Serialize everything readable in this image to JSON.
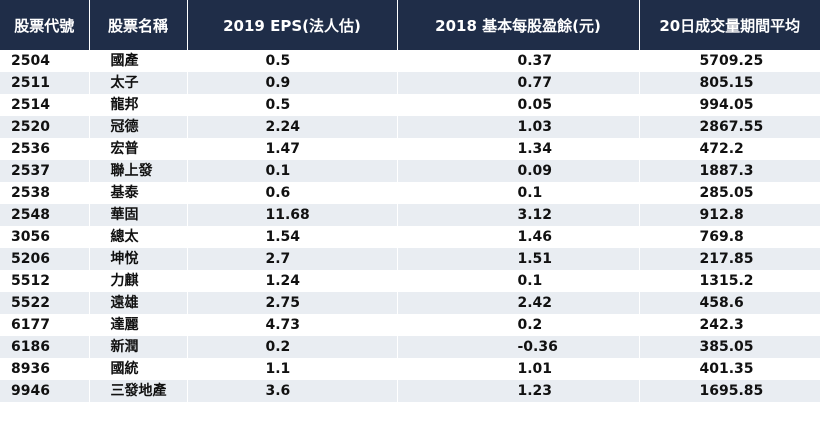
{
  "headers": [
    "股票代號",
    "股票名稱",
    "2019 EPS(法人估)",
    "2018 基本每股盈餘(元)",
    "20日成交量期間平均"
  ],
  "rows": [
    {
      "code": "2504",
      "name": "國產",
      "eps2019": "0.5",
      "eps2018": "0.37",
      "vol20": "5709.25"
    },
    {
      "code": "2511",
      "name": "太子",
      "eps2019": "0.9",
      "eps2018": "0.77",
      "vol20": "805.15"
    },
    {
      "code": "2514",
      "name": "龍邦",
      "eps2019": "0.5",
      "eps2018": "0.05",
      "vol20": "994.05"
    },
    {
      "code": "2520",
      "name": "冠德",
      "eps2019": "2.24",
      "eps2018": "1.03",
      "vol20": "2867.55"
    },
    {
      "code": "2536",
      "name": "宏普",
      "eps2019": "1.47",
      "eps2018": "1.34",
      "vol20": "472.2"
    },
    {
      "code": "2537",
      "name": "聯上發",
      "eps2019": "0.1",
      "eps2018": "0.09",
      "vol20": "1887.3"
    },
    {
      "code": "2538",
      "name": "基泰",
      "eps2019": "0.6",
      "eps2018": "0.1",
      "vol20": "285.05"
    },
    {
      "code": "2548",
      "name": "華固",
      "eps2019": "11.68",
      "eps2018": "3.12",
      "vol20": "912.8"
    },
    {
      "code": "3056",
      "name": "總太",
      "eps2019": "1.54",
      "eps2018": "1.46",
      "vol20": "769.8"
    },
    {
      "code": "5206",
      "name": "坤悅",
      "eps2019": "2.7",
      "eps2018": "1.51",
      "vol20": "217.85"
    },
    {
      "code": "5512",
      "name": "力麒",
      "eps2019": "1.24",
      "eps2018": "0.1",
      "vol20": "1315.2"
    },
    {
      "code": "5522",
      "name": "遠雄",
      "eps2019": "2.75",
      "eps2018": "2.42",
      "vol20": "458.6"
    },
    {
      "code": "6177",
      "name": "達麗",
      "eps2019": "4.73",
      "eps2018": "0.2",
      "vol20": "242.3"
    },
    {
      "code": "6186",
      "name": "新潤",
      "eps2019": "0.2",
      "eps2018": "-0.36",
      "vol20": "385.05"
    },
    {
      "code": "8936",
      "name": "國統",
      "eps2019": "1.1",
      "eps2018": "1.01",
      "vol20": "401.35"
    },
    {
      "code": "9946",
      "name": "三發地產",
      "eps2019": "3.6",
      "eps2018": "1.23",
      "vol20": "1695.85"
    }
  ]
}
